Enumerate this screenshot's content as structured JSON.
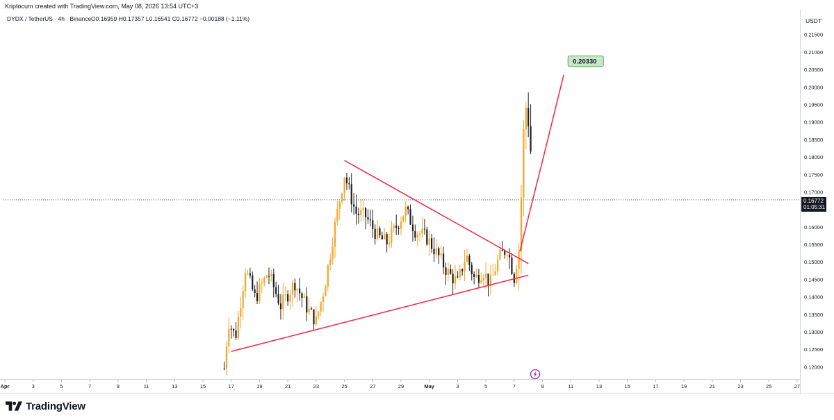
{
  "header": {
    "credit": "Kriptocum created with TradingView.com, May 08, 2026 13:54 UTC+3"
  },
  "legend": {
    "symbol": "DYDX / TetherUS · 4h · Binance",
    "ohlc": "O0.16959 H0.17357 L0.16541 C0.16772 −0.00188 (−1.11%)"
  },
  "price_axis": {
    "unit_label": "USDT",
    "current_price_label": "0.16772",
    "countdown_label": "01:05:31"
  },
  "annotation": {
    "target_label": "0.20330"
  },
  "brand": {
    "name": "TradingView"
  },
  "colors": {
    "trendline": "#ef2f4a",
    "candle_up": "#f7a325",
    "candle_down": "#1f1f1f",
    "target_box_fill": "#c8e6c9",
    "target_box_stroke": "#4caf50"
  },
  "icons": {
    "event_marker": "lightning-bolt-icon",
    "brand_logo": "tradingview-logo-icon"
  },
  "chart_data": {
    "type": "candlestick",
    "title": "DYDX / TetherUS · 4h · Binance",
    "ylabel": "USDT",
    "ylim": [
      0.1165,
      0.2205
    ],
    "y_ticks": [
      "0.12000",
      "0.12500",
      "0.13000",
      "0.13500",
      "0.14000",
      "0.14500",
      "0.15000",
      "0.15500",
      "0.16000",
      "0.16500",
      "0.17000",
      "0.17500",
      "0.18000",
      "0.18500",
      "0.19000",
      "0.19500",
      "0.20000",
      "0.20500",
      "0.21000",
      "0.21500"
    ],
    "x_ticks": [
      "Apr",
      "3",
      "5",
      "7",
      "9",
      "11",
      "13",
      "15",
      "17",
      "19",
      "21",
      "23",
      "25",
      "27",
      "29",
      "May",
      "3",
      "5",
      "7",
      "9",
      "11",
      "13",
      "15",
      "17",
      "19",
      "21",
      "23",
      "25",
      "27"
    ],
    "x_tick_days": [
      1,
      3,
      5,
      7,
      9,
      11,
      13,
      15,
      17,
      19,
      21,
      23,
      25,
      27,
      29,
      31,
      33,
      35,
      37,
      39,
      41,
      43,
      45,
      47,
      49,
      51,
      53,
      55,
      57
    ],
    "x_range_days": [
      0.9,
      57.2
    ],
    "current_price": 0.16772,
    "candle_window_days": [
      16.5,
      38.3
    ],
    "candle_path": [
      [
        16.5,
        0.1195
      ],
      [
        16.8,
        0.133
      ],
      [
        17.3,
        0.1285
      ],
      [
        18.0,
        0.148
      ],
      [
        18.7,
        0.1395
      ],
      [
        19.6,
        0.147
      ],
      [
        20.5,
        0.1375
      ],
      [
        21.5,
        0.144
      ],
      [
        22.4,
        0.1365
      ],
      [
        23.0,
        0.133
      ],
      [
        23.6,
        0.143
      ],
      [
        24.4,
        0.162
      ],
      [
        25.0,
        0.175
      ],
      [
        25.8,
        0.164
      ],
      [
        26.5,
        0.163
      ],
      [
        27.4,
        0.157
      ],
      [
        28.0,
        0.1555
      ],
      [
        28.8,
        0.161
      ],
      [
        29.3,
        0.165
      ],
      [
        30.0,
        0.159
      ],
      [
        30.8,
        0.157
      ],
      [
        31.6,
        0.152
      ],
      [
        32.3,
        0.147
      ],
      [
        33.0,
        0.144
      ],
      [
        33.6,
        0.152
      ],
      [
        34.2,
        0.145
      ],
      [
        34.8,
        0.1475
      ],
      [
        35.3,
        0.1435
      ],
      [
        35.9,
        0.151
      ],
      [
        36.5,
        0.154
      ],
      [
        37.0,
        0.1455
      ],
      [
        37.4,
        0.1555
      ],
      [
        37.6,
        0.182
      ],
      [
        37.8,
        0.195
      ],
      [
        38.1,
        0.189
      ],
      [
        38.3,
        0.16772
      ]
    ],
    "trendlines": [
      {
        "name": "descending-resistance",
        "points": [
          [
            25.0,
            0.179
          ],
          [
            38.0,
            0.1495
          ]
        ]
      },
      {
        "name": "ascending-support",
        "points": [
          [
            17.0,
            0.1244
          ],
          [
            38.0,
            0.1462
          ]
        ]
      },
      {
        "name": "projection",
        "points": [
          [
            37.4,
            0.153
          ],
          [
            39.3,
            0.1837
          ],
          [
            40.5,
            0.2035
          ]
        ]
      }
    ],
    "target": {
      "label": "0.20330",
      "x_day": 41.0,
      "y": 0.2047
    }
  }
}
